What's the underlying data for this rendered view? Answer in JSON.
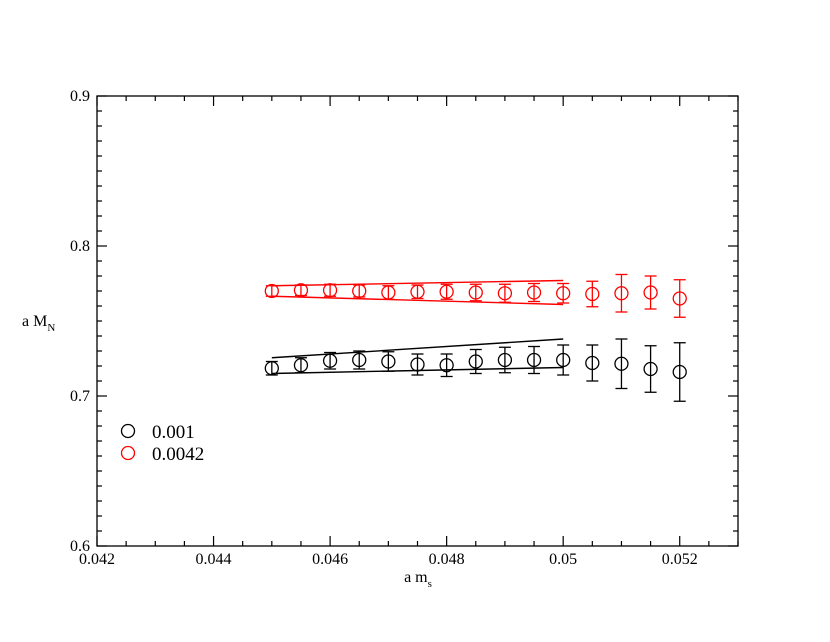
{
  "chart_data": {
    "type": "scatter",
    "title": "",
    "xlabel": "a m",
    "xlabel_sub": "s",
    "ylabel": "a M",
    "ylabel_sub": "N",
    "xlim": [
      0.042,
      0.053
    ],
    "ylim": [
      0.6,
      0.9
    ],
    "xticks": [
      0.042,
      0.044,
      0.046,
      0.048,
      0.05,
      0.052
    ],
    "xtick_labels": [
      "0.042",
      "0.044",
      "0.046",
      "0.048",
      "0.05",
      "0.052"
    ],
    "yticks": [
      0.6,
      0.7,
      0.8,
      0.9
    ],
    "ytick_labels": [
      "0.6",
      "0.7",
      "0.8",
      "0.9"
    ],
    "grid": false,
    "legend": "left-lower",
    "series": [
      {
        "name": "0.001",
        "color": "#000000",
        "marker": "open-circle",
        "points": [
          {
            "x": 0.045,
            "y": 0.7185,
            "err": 0.0045
          },
          {
            "x": 0.0455,
            "y": 0.7205,
            "err": 0.005
          },
          {
            "x": 0.046,
            "y": 0.7235,
            "err": 0.0055
          },
          {
            "x": 0.0465,
            "y": 0.724,
            "err": 0.006
          },
          {
            "x": 0.047,
            "y": 0.723,
            "err": 0.0065
          },
          {
            "x": 0.0475,
            "y": 0.721,
            "err": 0.007
          },
          {
            "x": 0.048,
            "y": 0.7205,
            "err": 0.0075
          },
          {
            "x": 0.0485,
            "y": 0.723,
            "err": 0.008
          },
          {
            "x": 0.049,
            "y": 0.724,
            "err": 0.0085
          },
          {
            "x": 0.0495,
            "y": 0.724,
            "err": 0.009
          },
          {
            "x": 0.05,
            "y": 0.724,
            "err": 0.01
          },
          {
            "x": 0.0505,
            "y": 0.722,
            "err": 0.012
          },
          {
            "x": 0.051,
            "y": 0.7215,
            "err": 0.0165
          },
          {
            "x": 0.0515,
            "y": 0.718,
            "err": 0.0155
          },
          {
            "x": 0.052,
            "y": 0.716,
            "err": 0.0195
          }
        ],
        "band": {
          "x": [
            0.045,
            0.05
          ],
          "upper": [
            0.7255,
            0.738
          ],
          "lower": [
            0.715,
            0.719
          ]
        }
      },
      {
        "name": "0.0042",
        "color": "#ff0000",
        "marker": "open-circle",
        "points": [
          {
            "x": 0.045,
            "y": 0.77,
            "err": 0.0035
          },
          {
            "x": 0.0455,
            "y": 0.7705,
            "err": 0.0035
          },
          {
            "x": 0.046,
            "y": 0.7705,
            "err": 0.004
          },
          {
            "x": 0.0465,
            "y": 0.77,
            "err": 0.004
          },
          {
            "x": 0.047,
            "y": 0.769,
            "err": 0.0045
          },
          {
            "x": 0.0475,
            "y": 0.7695,
            "err": 0.0045
          },
          {
            "x": 0.048,
            "y": 0.7695,
            "err": 0.005
          },
          {
            "x": 0.0485,
            "y": 0.769,
            "err": 0.0055
          },
          {
            "x": 0.049,
            "y": 0.7685,
            "err": 0.006
          },
          {
            "x": 0.0495,
            "y": 0.769,
            "err": 0.006
          },
          {
            "x": 0.05,
            "y": 0.7685,
            "err": 0.0065
          },
          {
            "x": 0.0505,
            "y": 0.768,
            "err": 0.0085
          },
          {
            "x": 0.051,
            "y": 0.7685,
            "err": 0.0125
          },
          {
            "x": 0.0515,
            "y": 0.769,
            "err": 0.011
          },
          {
            "x": 0.052,
            "y": 0.765,
            "err": 0.0125
          }
        ],
        "band": {
          "x": [
            0.045,
            0.05
          ],
          "upper": [
            0.7735,
            0.777
          ],
          "lower": [
            0.7665,
            0.761
          ]
        }
      }
    ]
  }
}
